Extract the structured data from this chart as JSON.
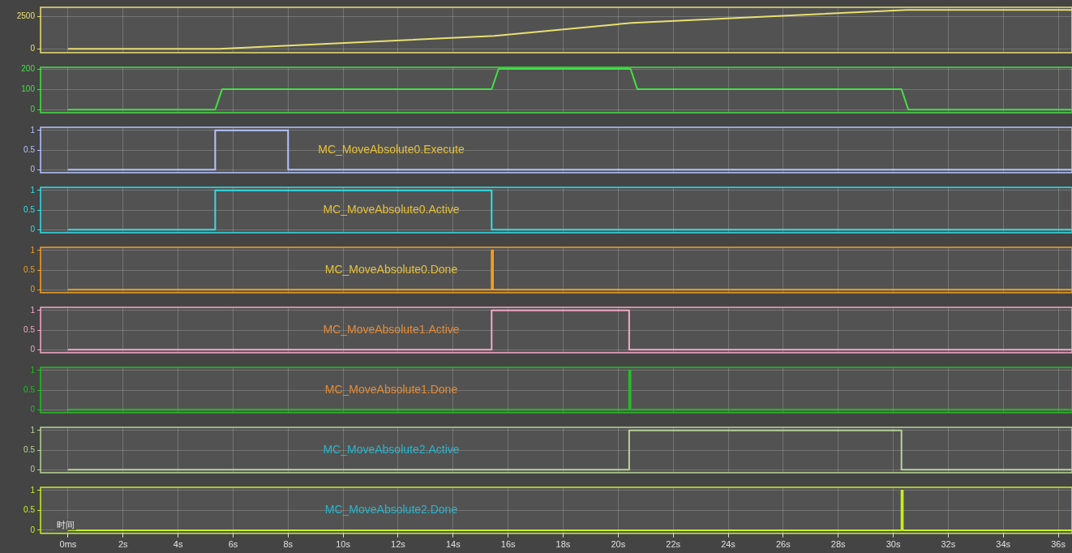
{
  "chart_data": [
    {
      "type": "line",
      "x": [
        0,
        5.5,
        15.5,
        20.5,
        30.5,
        36.5
      ],
      "series": [
        {
          "color": "#e8e070",
          "values": [
            0,
            0,
            1000,
            2000,
            3000,
            3000
          ]
        }
      ],
      "xlim": [
        -1,
        36.5
      ],
      "xticks": [
        {
          "value": 0,
          "label": null
        },
        {
          "value": 2,
          "label": null
        },
        {
          "value": 4,
          "label": null
        },
        {
          "value": 6,
          "label": null
        },
        {
          "value": 8,
          "label": null
        },
        {
          "value": 10,
          "label": null
        },
        {
          "value": 12,
          "label": null
        },
        {
          "value": 14,
          "label": null
        },
        {
          "value": 16,
          "label": null
        },
        {
          "value": 18,
          "label": null
        },
        {
          "value": 20,
          "label": null
        },
        {
          "value": 22,
          "label": null
        },
        {
          "value": 24,
          "label": null
        },
        {
          "value": 26,
          "label": null
        },
        {
          "value": 28,
          "label": null
        },
        {
          "value": 30,
          "label": null
        },
        {
          "value": 32,
          "label": null
        },
        {
          "value": 34,
          "label": null
        },
        {
          "value": 36,
          "label": null
        }
      ],
      "ylim": [
        -300,
        3200
      ],
      "yticks": [
        0,
        2500
      ],
      "grid": true,
      "tick_labels": "y"
    },
    {
      "type": "line",
      "x": [
        0,
        5.35,
        5.6,
        15.4,
        15.65,
        20.45,
        20.7,
        30.3,
        30.55,
        36.5
      ],
      "series": [
        {
          "color": "#44e044",
          "values": [
            0,
            0,
            100,
            100,
            200,
            200,
            100,
            100,
            0,
            0
          ]
        }
      ],
      "xlim": [
        -1,
        36.5
      ],
      "xticks": [
        {
          "value": 0,
          "label": null
        },
        {
          "value": 2,
          "label": null
        },
        {
          "value": 4,
          "label": null
        },
        {
          "value": 6,
          "label": null
        },
        {
          "value": 8,
          "label": null
        },
        {
          "value": 10,
          "label": null
        },
        {
          "value": 12,
          "label": null
        },
        {
          "value": 14,
          "label": null
        },
        {
          "value": 16,
          "label": null
        },
        {
          "value": 18,
          "label": null
        },
        {
          "value": 20,
          "label": null
        },
        {
          "value": 22,
          "label": null
        },
        {
          "value": 24,
          "label": null
        },
        {
          "value": 26,
          "label": null
        },
        {
          "value": 28,
          "label": null
        },
        {
          "value": 30,
          "label": null
        },
        {
          "value": 32,
          "label": null
        },
        {
          "value": 34,
          "label": null
        },
        {
          "value": 36,
          "label": null
        }
      ],
      "ylim": [
        -15,
        208
      ],
      "yticks": [
        0,
        100,
        200
      ],
      "grid": true,
      "tick_labels": "y"
    },
    {
      "type": "step",
      "x": [
        0,
        5.35,
        8.0,
        36.5
      ],
      "series": [
        {
          "name": "MC_MoveAbsolute0.Execute",
          "color": "#b4c4ff",
          "values": [
            0,
            1,
            0,
            0
          ]
        }
      ],
      "xlim": [
        -1,
        36.5
      ],
      "xticks": [
        {
          "value": 0,
          "label": null
        },
        {
          "value": 2,
          "label": null
        },
        {
          "value": 4,
          "label": null
        },
        {
          "value": 6,
          "label": null
        },
        {
          "value": 8,
          "label": null
        },
        {
          "value": 10,
          "label": null
        },
        {
          "value": 12,
          "label": null
        },
        {
          "value": 14,
          "label": null
        },
        {
          "value": 16,
          "label": null
        },
        {
          "value": 18,
          "label": null
        },
        {
          "value": 20,
          "label": null
        },
        {
          "value": 22,
          "label": null
        },
        {
          "value": 24,
          "label": null
        },
        {
          "value": 26,
          "label": null
        },
        {
          "value": 28,
          "label": null
        },
        {
          "value": 30,
          "label": null
        },
        {
          "value": 32,
          "label": null
        },
        {
          "value": 34,
          "label": null
        },
        {
          "value": 36,
          "label": null
        }
      ],
      "ylim": [
        -0.08,
        1.08
      ],
      "yticks": [
        0,
        0.5,
        1
      ],
      "grid": true,
      "tick_labels": "y"
    },
    {
      "type": "step",
      "x": [
        0,
        5.35,
        15.4,
        36.5
      ],
      "series": [
        {
          "name": "MC_MoveAbsolute0.Active",
          "color": "#30e0e8",
          "values": [
            0,
            1,
            0,
            0
          ]
        }
      ],
      "xlim": [
        -1,
        36.5
      ],
      "xticks": [
        {
          "value": 0,
          "label": null
        },
        {
          "value": 2,
          "label": null
        },
        {
          "value": 4,
          "label": null
        },
        {
          "value": 6,
          "label": null
        },
        {
          "value": 8,
          "label": null
        },
        {
          "value": 10,
          "label": null
        },
        {
          "value": 12,
          "label": null
        },
        {
          "value": 14,
          "label": null
        },
        {
          "value": 16,
          "label": null
        },
        {
          "value": 18,
          "label": null
        },
        {
          "value": 20,
          "label": null
        },
        {
          "value": 22,
          "label": null
        },
        {
          "value": 24,
          "label": null
        },
        {
          "value": 26,
          "label": null
        },
        {
          "value": 28,
          "label": null
        },
        {
          "value": 30,
          "label": null
        },
        {
          "value": 32,
          "label": null
        },
        {
          "value": 34,
          "label": null
        },
        {
          "value": 36,
          "label": null
        }
      ],
      "ylim": [
        -0.08,
        1.08
      ],
      "yticks": [
        0,
        0.5,
        1
      ],
      "grid": true,
      "tick_labels": "y"
    },
    {
      "type": "step",
      "x": [
        0,
        15.4,
        15.45,
        36.5
      ],
      "series": [
        {
          "name": "MC_MoveAbsolute0.Done",
          "color": "#f0a020",
          "values": [
            0,
            1,
            0,
            0
          ]
        }
      ],
      "xlim": [
        -1,
        36.5
      ],
      "xticks": [
        {
          "value": 0,
          "label": null
        },
        {
          "value": 2,
          "label": null
        },
        {
          "value": 4,
          "label": null
        },
        {
          "value": 6,
          "label": null
        },
        {
          "value": 8,
          "label": null
        },
        {
          "value": 10,
          "label": null
        },
        {
          "value": 12,
          "label": null
        },
        {
          "value": 14,
          "label": null
        },
        {
          "value": 16,
          "label": null
        },
        {
          "value": 18,
          "label": null
        },
        {
          "value": 20,
          "label": null
        },
        {
          "value": 22,
          "label": null
        },
        {
          "value": 24,
          "label": null
        },
        {
          "value": 26,
          "label": null
        },
        {
          "value": 28,
          "label": null
        },
        {
          "value": 30,
          "label": null
        },
        {
          "value": 32,
          "label": null
        },
        {
          "value": 34,
          "label": null
        },
        {
          "value": 36,
          "label": null
        }
      ],
      "ylim": [
        -0.08,
        1.08
      ],
      "yticks": [
        0,
        0.5,
        1
      ],
      "grid": true,
      "tick_labels": "y"
    },
    {
      "type": "step",
      "x": [
        0,
        15.4,
        20.4,
        36.5
      ],
      "series": [
        {
          "name": "MC_MoveAbsolute1.Active",
          "color": "#f4a8c8",
          "values": [
            0,
            1,
            0,
            0
          ]
        }
      ],
      "xlim": [
        -1,
        36.5
      ],
      "xticks": [
        {
          "value": 0,
          "label": null
        },
        {
          "value": 2,
          "label": null
        },
        {
          "value": 4,
          "label": null
        },
        {
          "value": 6,
          "label": null
        },
        {
          "value": 8,
          "label": null
        },
        {
          "value": 10,
          "label": null
        },
        {
          "value": 12,
          "label": null
        },
        {
          "value": 14,
          "label": null
        },
        {
          "value": 16,
          "label": null
        },
        {
          "value": 18,
          "label": null
        },
        {
          "value": 20,
          "label": null
        },
        {
          "value": 22,
          "label": null
        },
        {
          "value": 24,
          "label": null
        },
        {
          "value": 26,
          "label": null
        },
        {
          "value": 28,
          "label": null
        },
        {
          "value": 30,
          "label": null
        },
        {
          "value": 32,
          "label": null
        },
        {
          "value": 34,
          "label": null
        },
        {
          "value": 36,
          "label": null
        }
      ],
      "ylim": [
        -0.08,
        1.08
      ],
      "yticks": [
        0,
        0.5,
        1
      ],
      "grid": true,
      "tick_labels": "y"
    },
    {
      "type": "step",
      "x": [
        0,
        20.4,
        20.45,
        36.5
      ],
      "series": [
        {
          "name": "MC_MoveAbsolute1.Done",
          "color": "#20c020",
          "values": [
            0,
            1,
            0,
            0
          ]
        }
      ],
      "xlim": [
        -1,
        36.5
      ],
      "xticks": [
        {
          "value": 0,
          "label": null
        },
        {
          "value": 2,
          "label": null
        },
        {
          "value": 4,
          "label": null
        },
        {
          "value": 6,
          "label": null
        },
        {
          "value": 8,
          "label": null
        },
        {
          "value": 10,
          "label": null
        },
        {
          "value": 12,
          "label": null
        },
        {
          "value": 14,
          "label": null
        },
        {
          "value": 16,
          "label": null
        },
        {
          "value": 18,
          "label": null
        },
        {
          "value": 20,
          "label": null
        },
        {
          "value": 22,
          "label": null
        },
        {
          "value": 24,
          "label": null
        },
        {
          "value": 26,
          "label": null
        },
        {
          "value": 28,
          "label": null
        },
        {
          "value": 30,
          "label": null
        },
        {
          "value": 32,
          "label": null
        },
        {
          "value": 34,
          "label": null
        },
        {
          "value": 36,
          "label": null
        }
      ],
      "ylim": [
        -0.08,
        1.08
      ],
      "yticks": [
        0,
        0.5,
        1
      ],
      "grid": true,
      "tick_labels": "y"
    },
    {
      "type": "step",
      "x": [
        0,
        20.4,
        30.3,
        36.5
      ],
      "series": [
        {
          "name": "MC_MoveAbsolute2.Active",
          "color": "#b8d498",
          "values": [
            0,
            1,
            0,
            0
          ]
        }
      ],
      "xlim": [
        -1,
        36.5
      ],
      "xticks": [
        {
          "value": 0,
          "label": null
        },
        {
          "value": 2,
          "label": null
        },
        {
          "value": 4,
          "label": null
        },
        {
          "value": 6,
          "label": null
        },
        {
          "value": 8,
          "label": null
        },
        {
          "value": 10,
          "label": null
        },
        {
          "value": 12,
          "label": null
        },
        {
          "value": 14,
          "label": null
        },
        {
          "value": 16,
          "label": null
        },
        {
          "value": 18,
          "label": null
        },
        {
          "value": 20,
          "label": null
        },
        {
          "value": 22,
          "label": null
        },
        {
          "value": 24,
          "label": null
        },
        {
          "value": 26,
          "label": null
        },
        {
          "value": 28,
          "label": null
        },
        {
          "value": 30,
          "label": null
        },
        {
          "value": 32,
          "label": null
        },
        {
          "value": 34,
          "label": null
        },
        {
          "value": 36,
          "label": null
        }
      ],
      "ylim": [
        -0.08,
        1.08
      ],
      "yticks": [
        0,
        0.5,
        1
      ],
      "grid": true,
      "tick_labels": "y"
    },
    {
      "type": "step",
      "x": [
        0,
        30.3,
        30.35,
        36.5
      ],
      "series": [
        {
          "name": "MC_MoveAbsolute2.Done",
          "color": "#c4f020",
          "values": [
            0,
            1,
            0,
            0
          ]
        }
      ],
      "xlabel": "时间",
      "xlim": [
        -1,
        36.5
      ],
      "xticks": [
        {
          "value": 0,
          "label": "0ms"
        },
        {
          "value": 2,
          "label": "2s"
        },
        {
          "value": 4,
          "label": "4s"
        },
        {
          "value": 6,
          "label": "6s"
        },
        {
          "value": 8,
          "label": "8s"
        },
        {
          "value": 10,
          "label": "10s"
        },
        {
          "value": 12,
          "label": "12s"
        },
        {
          "value": 14,
          "label": "14s"
        },
        {
          "value": 16,
          "label": "16s"
        },
        {
          "value": 18,
          "label": "18s"
        },
        {
          "value": 20,
          "label": "20s"
        },
        {
          "value": 22,
          "label": "22s"
        },
        {
          "value": 24,
          "label": "24s"
        },
        {
          "value": 26,
          "label": "26s"
        },
        {
          "value": 28,
          "label": "28s"
        },
        {
          "value": 30,
          "label": "30s"
        },
        {
          "value": 32,
          "label": "32s"
        },
        {
          "value": 34,
          "label": "34s"
        },
        {
          "value": 36,
          "label": "36s"
        }
      ],
      "ylim": [
        -0.08,
        1.08
      ],
      "yticks": [
        0,
        0.5,
        1
      ],
      "grid": true
    }
  ]
}
